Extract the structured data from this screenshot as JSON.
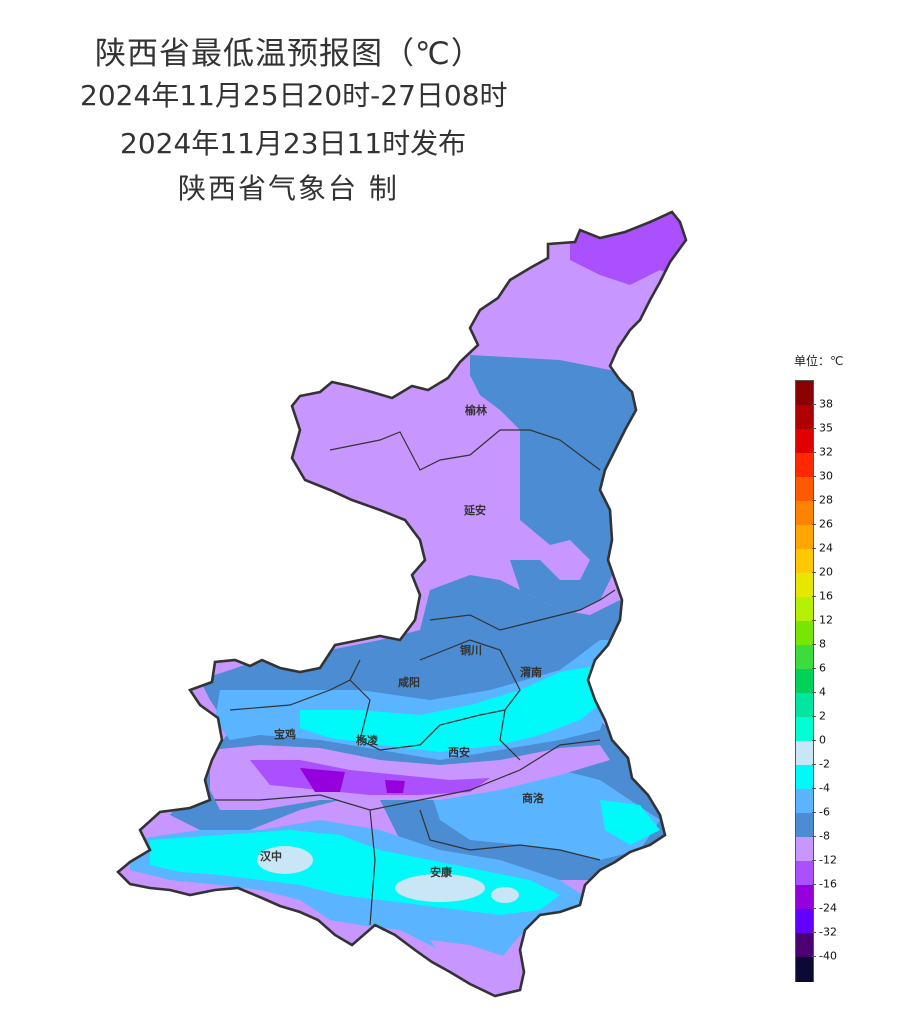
{
  "title": {
    "line1": "陕西省最低温预报图（℃）",
    "line2": "2024年11月25日20时-27日08时",
    "line3": "2024年11月23日11时发布",
    "line4": "陕西省气象台 制"
  },
  "legend": {
    "unit_label": "单位：℃",
    "levels": [
      {
        "label": "38",
        "color": "#8b0000"
      },
      {
        "label": "35",
        "color": "#b00000"
      },
      {
        "label": "32",
        "color": "#e00000"
      },
      {
        "label": "30",
        "color": "#ff2800"
      },
      {
        "label": "28",
        "color": "#ff5a00"
      },
      {
        "label": "26",
        "color": "#ff8200"
      },
      {
        "label": "24",
        "color": "#ffa500"
      },
      {
        "label": "20",
        "color": "#ffc800"
      },
      {
        "label": "16",
        "color": "#e6e600"
      },
      {
        "label": "12",
        "color": "#b4f000"
      },
      {
        "label": "8",
        "color": "#78e600"
      },
      {
        "label": "6",
        "color": "#3cdc3c"
      },
      {
        "label": "4",
        "color": "#00d25a"
      },
      {
        "label": "2",
        "color": "#00e6a0"
      },
      {
        "label": "0",
        "color": "#00ffd2"
      },
      {
        "label": "-2",
        "color": "#c8e6f5"
      },
      {
        "label": "-4",
        "color": "#00fafa"
      },
      {
        "label": "-6",
        "color": "#5ab4ff"
      },
      {
        "label": "-8",
        "color": "#4b8cd2"
      },
      {
        "label": "-12",
        "color": "#c896ff"
      },
      {
        "label": "-16",
        "color": "#aa50ff"
      },
      {
        "label": "-24",
        "color": "#9600dc"
      },
      {
        "label": "-32",
        "color": "#6400ff"
      },
      {
        "label": "-40",
        "color": "#4b0073"
      },
      {
        "label": "",
        "color": "#0a0a32"
      }
    ]
  },
  "cities": [
    "榆林",
    "延安",
    "铜川",
    "渭南",
    "咸阳",
    "宝鸡",
    "杨凌",
    "西安",
    "商洛",
    "汉中",
    "安康"
  ],
  "colors": {
    "border": "#333333",
    "purple_light": "#c896ff",
    "purple_mid": "#aa50ff",
    "purple_dark": "#9600dc",
    "blue_dark": "#4b8cd2",
    "blue_mid": "#5ab4ff",
    "cyan": "#00fafa",
    "pale": "#c8e6f5"
  }
}
